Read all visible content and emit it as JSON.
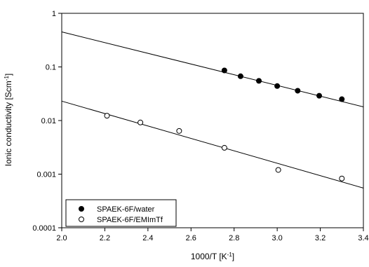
{
  "chart_data": {
    "type": "scatter",
    "title": "",
    "xlabel": "1000/T [K",
    "xlabel_sup": "-1",
    "xlabel_end": "]",
    "ylabel": "Ionic conductivity [Scm",
    "ylabel_sup": "-1",
    "ylabel_end": "]",
    "xlim": [
      2.0,
      3.4
    ],
    "ylim": [
      0.0001,
      1
    ],
    "yscale": "log",
    "x_ticks": [
      2.0,
      2.2,
      2.4,
      2.6,
      2.8,
      3.0,
      3.2,
      3.4
    ],
    "x_tick_labels": [
      "2.0",
      "2.2",
      "2.4",
      "2.6",
      "2.8",
      "3.0",
      "3.2",
      "3.4"
    ],
    "y_ticks": [
      0.0001,
      0.001,
      0.01,
      0.1,
      1
    ],
    "y_tick_labels": [
      "0.0001",
      "0.001",
      "0.01",
      "0.1",
      "1"
    ],
    "grid": false,
    "legend_position": "bottom-left",
    "series": [
      {
        "name": "SPAEK-6F/water",
        "marker": "filled-circle",
        "color": "#000000",
        "x": [
          2.755,
          2.83,
          2.915,
          3.0,
          3.095,
          3.195,
          3.3
        ],
        "y": [
          0.086,
          0.067,
          0.055,
          0.044,
          0.036,
          0.029,
          0.025
        ],
        "fit": {
          "x": [
            2.0,
            3.4
          ],
          "y": [
            0.45,
            0.018
          ]
        }
      },
      {
        "name": "SPAEK-6F/EMImTf",
        "marker": "open-circle",
        "color": "#000000",
        "x": [
          2.21,
          2.365,
          2.545,
          2.755,
          3.005,
          3.3
        ],
        "y": [
          0.0123,
          0.0092,
          0.0064,
          0.0031,
          0.0012,
          0.00083
        ],
        "fit": {
          "x": [
            2.0,
            3.4
          ],
          "y": [
            0.023,
            0.00055
          ]
        }
      }
    ]
  }
}
